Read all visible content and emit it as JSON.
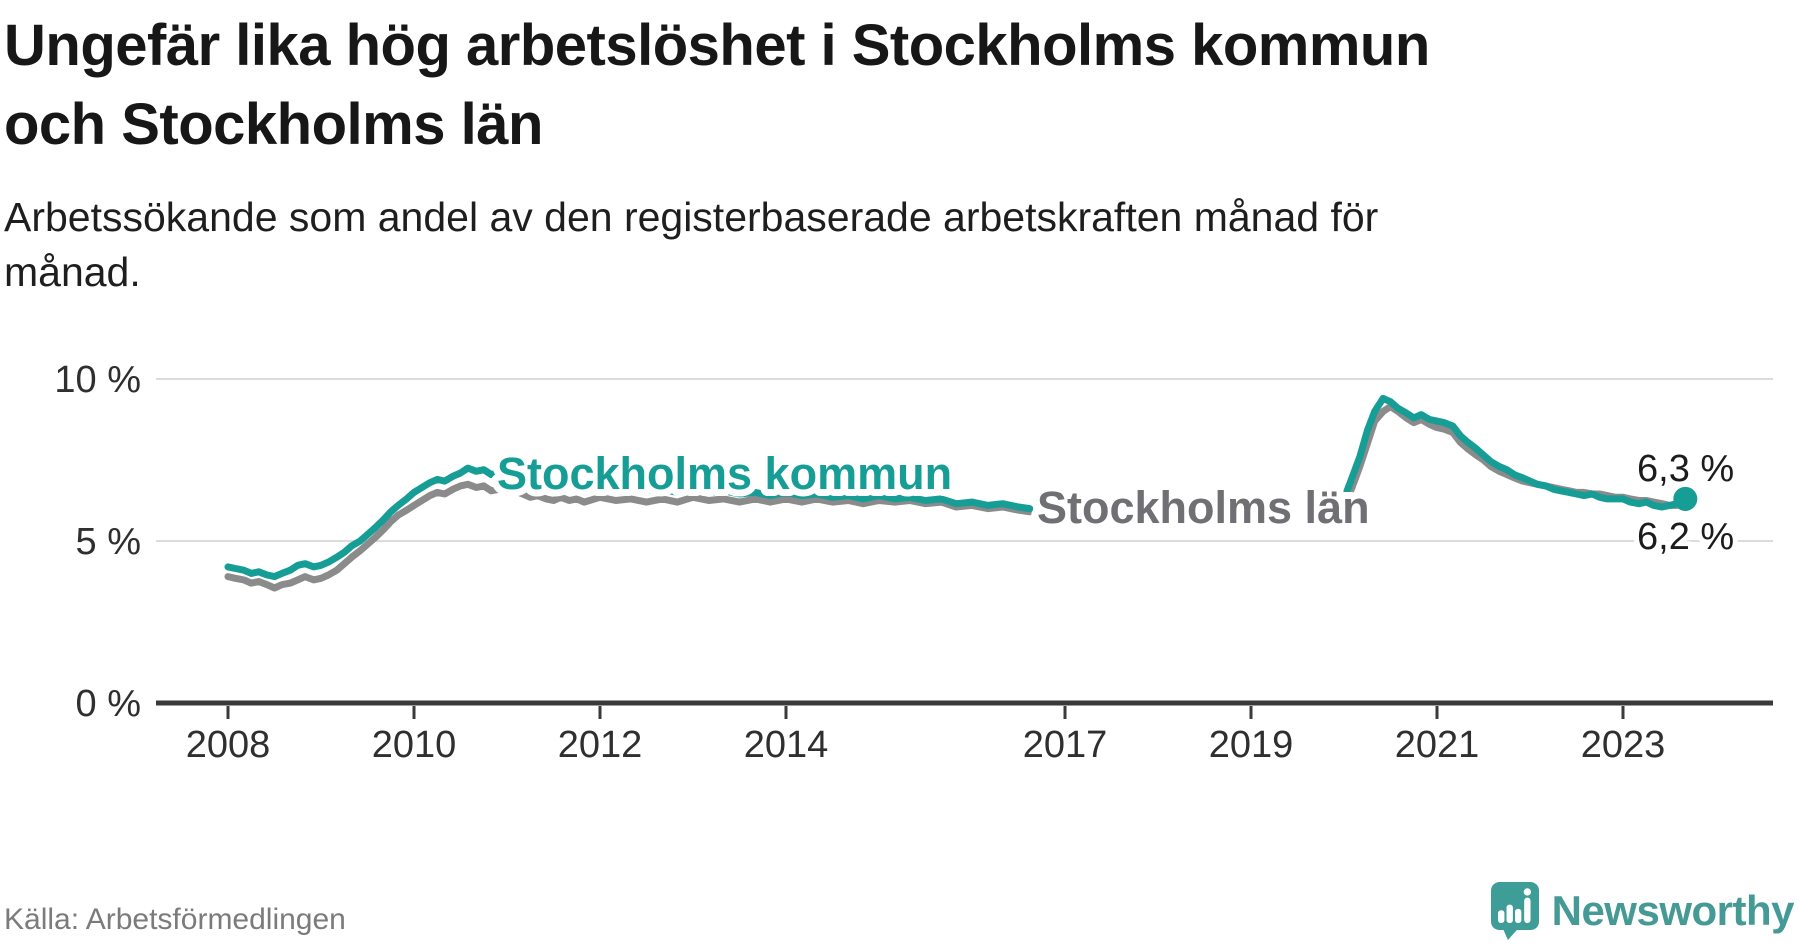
{
  "header": {
    "title_lines": [
      "Ungefär lika hög arbetslöshet i Stockholms kommun",
      "och Stockholms län"
    ],
    "subtitle_lines": [
      "Arbetssökande som andel av den registerbaserade arbetskraften månad för",
      "månad."
    ]
  },
  "footer": {
    "source": "Källa: Arbetsförmedlingen",
    "brand": "Newsworthy"
  },
  "colors": {
    "kommun": "#169e96",
    "lan_line": "#8b8b8b",
    "lan_label": "#6f6f74",
    "value_label": "#1c1c1c",
    "grid": "#dcdcdc",
    "axis": "#3a3a3a",
    "tick_label": "#2f2f2f",
    "source_text": "#7b7b7b",
    "brand_teal": "#459a95"
  },
  "chart_data": {
    "type": "line",
    "unit": "%",
    "x_axis": {
      "ticks": [
        2008,
        2010,
        2012,
        2014,
        2017,
        2019,
        2021,
        2023
      ]
    },
    "y_axis": {
      "min": 0,
      "max": 10,
      "ticks": [
        {
          "value": 0,
          "label": "0 %"
        },
        {
          "value": 5,
          "label": "5 %"
        },
        {
          "value": 10,
          "label": "10 %"
        }
      ]
    },
    "series": [
      {
        "name": "Stockholms län",
        "label": "Stockholms län",
        "color": "#8b8b8b",
        "label_color": "#6f6f74",
        "end_label": "6,2 %",
        "end_value": 6.2,
        "segments": [
          [
            [
              2008,
              3.9
            ],
            [
              2008.08,
              3.85
            ],
            [
              2008.17,
              3.8
            ],
            [
              2008.25,
              3.7
            ],
            [
              2008.33,
              3.75
            ],
            [
              2008.42,
              3.65
            ],
            [
              2008.5,
              3.55
            ],
            [
              2008.58,
              3.65
            ],
            [
              2008.67,
              3.7
            ],
            [
              2008.75,
              3.8
            ],
            [
              2008.83,
              3.9
            ],
            [
              2008.92,
              3.8
            ],
            [
              2009,
              3.85
            ],
            [
              2009.08,
              3.95
            ],
            [
              2009.17,
              4.1
            ],
            [
              2009.25,
              4.3
            ],
            [
              2009.33,
              4.5
            ],
            [
              2009.42,
              4.7
            ],
            [
              2009.5,
              4.9
            ],
            [
              2009.58,
              5.1
            ],
            [
              2009.67,
              5.35
            ],
            [
              2009.75,
              5.6
            ],
            [
              2009.83,
              5.8
            ],
            [
              2009.92,
              5.95
            ],
            [
              2010,
              6.1
            ],
            [
              2010.17,
              6.4
            ],
            [
              2010.25,
              6.5
            ],
            [
              2010.33,
              6.45
            ],
            [
              2010.42,
              6.6
            ],
            [
              2010.5,
              6.7
            ],
            [
              2010.58,
              6.75
            ],
            [
              2010.67,
              6.65
            ],
            [
              2010.75,
              6.7
            ],
            [
              2010.83,
              6.55
            ],
            [
              2010.92,
              6.6
            ],
            [
              2011,
              6.5
            ],
            [
              2011.08,
              6.55
            ],
            [
              2011.17,
              6.45
            ],
            [
              2011.25,
              6.35
            ],
            [
              2011.33,
              6.4
            ],
            [
              2011.42,
              6.3
            ],
            [
              2011.5,
              6.25
            ],
            [
              2011.58,
              6.35
            ],
            [
              2011.67,
              6.25
            ],
            [
              2011.75,
              6.3
            ],
            [
              2011.83,
              6.2
            ],
            [
              2012,
              6.35
            ],
            [
              2012.17,
              6.25
            ],
            [
              2012.33,
              6.3
            ],
            [
              2012.5,
              6.2
            ],
            [
              2012.67,
              6.3
            ],
            [
              2012.83,
              6.2
            ],
            [
              2013,
              6.35
            ],
            [
              2013.17,
              6.25
            ],
            [
              2013.33,
              6.3
            ],
            [
              2013.5,
              6.2
            ],
            [
              2013.67,
              6.3
            ],
            [
              2013.83,
              6.2
            ],
            [
              2014,
              6.3
            ],
            [
              2014.17,
              6.2
            ],
            [
              2014.33,
              6.3
            ],
            [
              2014.5,
              6.2
            ],
            [
              2014.67,
              6.25
            ],
            [
              2014.83,
              6.15
            ],
            [
              2015,
              6.25
            ],
            [
              2015.17,
              6.2
            ],
            [
              2015.33,
              6.25
            ],
            [
              2015.5,
              6.15
            ],
            [
              2015.67,
              6.2
            ],
            [
              2015.83,
              6.05
            ],
            [
              2016,
              6.1
            ],
            [
              2016.17,
              6
            ],
            [
              2016.33,
              6.05
            ],
            [
              2016.5,
              5.95
            ],
            [
              2016.62,
              5.9
            ]
          ],
          [
            [
              2020,
              6.15
            ],
            [
              2020.08,
              6.6
            ],
            [
              2020.17,
              7.3
            ],
            [
              2020.25,
              8
            ],
            [
              2020.33,
              8.7
            ],
            [
              2020.42,
              9
            ],
            [
              2020.5,
              9.15
            ],
            [
              2020.58,
              9
            ],
            [
              2020.67,
              8.8
            ],
            [
              2020.75,
              8.65
            ],
            [
              2020.83,
              8.75
            ],
            [
              2020.92,
              8.6
            ],
            [
              2021,
              8.5
            ],
            [
              2021.08,
              8.45
            ],
            [
              2021.17,
              8.35
            ],
            [
              2021.25,
              8.05
            ],
            [
              2021.33,
              7.85
            ],
            [
              2021.42,
              7.65
            ],
            [
              2021.5,
              7.5
            ],
            [
              2021.58,
              7.3
            ],
            [
              2021.67,
              7.15
            ],
            [
              2021.75,
              7.05
            ],
            [
              2021.83,
              6.95
            ],
            [
              2021.92,
              6.85
            ],
            [
              2022,
              6.8
            ],
            [
              2022.08,
              6.75
            ],
            [
              2022.17,
              6.7
            ],
            [
              2022.25,
              6.65
            ],
            [
              2022.33,
              6.6
            ],
            [
              2022.42,
              6.55
            ],
            [
              2022.5,
              6.5
            ],
            [
              2022.58,
              6.5
            ],
            [
              2022.67,
              6.45
            ],
            [
              2022.75,
              6.45
            ],
            [
              2022.83,
              6.4
            ],
            [
              2022.92,
              6.35
            ],
            [
              2023,
              6.35
            ],
            [
              2023.08,
              6.3
            ],
            [
              2023.17,
              6.25
            ],
            [
              2023.25,
              6.25
            ],
            [
              2023.33,
              6.2
            ],
            [
              2023.42,
              6.15
            ],
            [
              2023.5,
              6.1
            ],
            [
              2023.58,
              6.1
            ],
            [
              2023.67,
              6.2
            ]
          ]
        ]
      },
      {
        "name": "Stockholms kommun",
        "label": "Stockholms kommun",
        "color": "#169e96",
        "label_color": "#169e96",
        "end_label": "6,3 %",
        "end_value": 6.3,
        "segments": [
          [
            [
              2008,
              4.2
            ],
            [
              2008.08,
              4.15
            ],
            [
              2008.17,
              4.1
            ],
            [
              2008.25,
              4
            ],
            [
              2008.33,
              4.05
            ],
            [
              2008.42,
              3.95
            ],
            [
              2008.5,
              3.9
            ],
            [
              2008.58,
              4
            ],
            [
              2008.67,
              4.1
            ],
            [
              2008.75,
              4.25
            ],
            [
              2008.83,
              4.3
            ],
            [
              2008.92,
              4.2
            ],
            [
              2009,
              4.25
            ],
            [
              2009.08,
              4.35
            ],
            [
              2009.17,
              4.5
            ],
            [
              2009.25,
              4.65
            ],
            [
              2009.33,
              4.85
            ],
            [
              2009.42,
              5
            ],
            [
              2009.5,
              5.2
            ],
            [
              2009.58,
              5.4
            ],
            [
              2009.67,
              5.65
            ],
            [
              2009.75,
              5.9
            ],
            [
              2009.83,
              6.1
            ],
            [
              2009.92,
              6.3
            ],
            [
              2010,
              6.5
            ],
            [
              2010.17,
              6.8
            ],
            [
              2010.25,
              6.9
            ],
            [
              2010.33,
              6.85
            ],
            [
              2010.42,
              7
            ],
            [
              2010.5,
              7.1
            ],
            [
              2010.58,
              7.25
            ],
            [
              2010.67,
              7.15
            ],
            [
              2010.75,
              7.2
            ],
            [
              2010.83,
              7.05
            ],
            [
              2010.92,
              7.1
            ],
            [
              2011,
              7
            ],
            [
              2011.08,
              7.05
            ],
            [
              2011.17,
              6.9
            ],
            [
              2011.25,
              6.8
            ],
            [
              2011.33,
              6.85
            ],
            [
              2011.42,
              6.75
            ],
            [
              2011.5,
              6.7
            ],
            [
              2011.58,
              6.75
            ],
            [
              2011.67,
              6.65
            ],
            [
              2011.75,
              6.7
            ],
            [
              2011.83,
              6.6
            ],
            [
              2012,
              6.7
            ],
            [
              2012.17,
              6.6
            ],
            [
              2012.33,
              6.65
            ],
            [
              2012.5,
              6.55
            ],
            [
              2012.67,
              6.6
            ],
            [
              2012.83,
              6.5
            ],
            [
              2013,
              6.6
            ],
            [
              2013.17,
              6.5
            ],
            [
              2013.33,
              6.55
            ],
            [
              2013.5,
              6.45
            ],
            [
              2013.67,
              6.5
            ],
            [
              2013.83,
              6.4
            ],
            [
              2014,
              6.5
            ],
            [
              2014.17,
              6.4
            ],
            [
              2014.33,
              6.45
            ],
            [
              2014.5,
              6.35
            ],
            [
              2014.67,
              6.4
            ],
            [
              2014.83,
              6.3
            ],
            [
              2015,
              6.4
            ],
            [
              2015.17,
              6.3
            ],
            [
              2015.33,
              6.35
            ],
            [
              2015.5,
              6.25
            ],
            [
              2015.67,
              6.3
            ],
            [
              2015.83,
              6.15
            ],
            [
              2016,
              6.2
            ],
            [
              2016.17,
              6.1
            ],
            [
              2016.33,
              6.15
            ],
            [
              2016.5,
              6.05
            ],
            [
              2016.62,
              6
            ]
          ],
          [
            [
              2020,
              6.3
            ],
            [
              2020.08,
              6.9
            ],
            [
              2020.17,
              7.6
            ],
            [
              2020.25,
              8.4
            ],
            [
              2020.33,
              9
            ],
            [
              2020.42,
              9.4
            ],
            [
              2020.5,
              9.3
            ],
            [
              2020.58,
              9.1
            ],
            [
              2020.67,
              8.95
            ],
            [
              2020.75,
              8.8
            ],
            [
              2020.83,
              8.9
            ],
            [
              2020.92,
              8.75
            ],
            [
              2021,
              8.7
            ],
            [
              2021.08,
              8.65
            ],
            [
              2021.17,
              8.55
            ],
            [
              2021.25,
              8.25
            ],
            [
              2021.33,
              8.05
            ],
            [
              2021.42,
              7.85
            ],
            [
              2021.5,
              7.65
            ],
            [
              2021.58,
              7.45
            ],
            [
              2021.67,
              7.3
            ],
            [
              2021.75,
              7.2
            ],
            [
              2021.83,
              7.05
            ],
            [
              2021.92,
              6.95
            ],
            [
              2022,
              6.85
            ],
            [
              2022.08,
              6.75
            ],
            [
              2022.17,
              6.7
            ],
            [
              2022.25,
              6.6
            ],
            [
              2022.33,
              6.55
            ],
            [
              2022.42,
              6.5
            ],
            [
              2022.5,
              6.45
            ],
            [
              2022.58,
              6.4
            ],
            [
              2022.67,
              6.45
            ],
            [
              2022.75,
              6.35
            ],
            [
              2022.83,
              6.3
            ],
            [
              2022.92,
              6.3
            ],
            [
              2023,
              6.3
            ],
            [
              2023.08,
              6.2
            ],
            [
              2023.17,
              6.15
            ],
            [
              2023.25,
              6.2
            ],
            [
              2023.33,
              6.1
            ],
            [
              2023.42,
              6.05
            ],
            [
              2023.5,
              6.1
            ],
            [
              2023.58,
              6.15
            ],
            [
              2023.67,
              6.3
            ]
          ]
        ]
      }
    ]
  }
}
